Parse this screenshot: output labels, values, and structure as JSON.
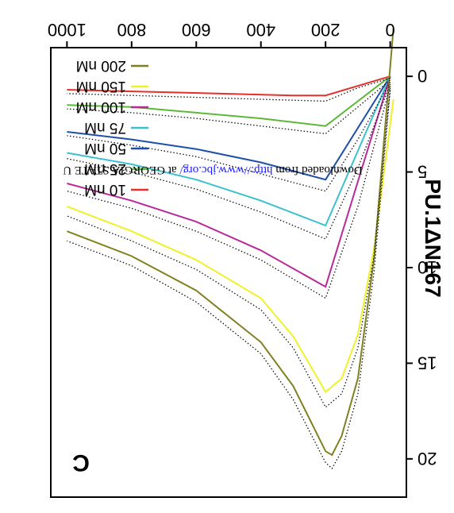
{
  "chart_data": {
    "type": "line",
    "panel_label": "C",
    "title": "PU.1ΔN167",
    "xlabel": "",
    "ylabel": "",
    "xlim": [
      -50,
      1050
    ],
    "ylim": [
      -1.5,
      22
    ],
    "x_ticks": [
      0,
      200,
      400,
      600,
      800,
      1000
    ],
    "y_ticks": [
      0,
      5,
      10,
      15,
      20
    ],
    "grid": false,
    "legend_position": "lower-right",
    "orientation": "rotated-180",
    "series": [
      {
        "name": "10 nM",
        "color": "#e8302a",
        "fit": [
          [
            0,
            0
          ],
          [
            200,
            1.0
          ],
          [
            300,
            1.0
          ],
          [
            1000,
            0.7
          ]
        ],
        "observed": [
          [
            0,
            0.1
          ],
          [
            100,
            0.6
          ],
          [
            200,
            1.3
          ],
          [
            400,
            1.2
          ],
          [
            600,
            1.1
          ],
          [
            800,
            1.0
          ],
          [
            1000,
            0.9
          ]
        ]
      },
      {
        "name": "25 nM",
        "color": "#5cb83a",
        "fit": [
          [
            0,
            0
          ],
          [
            200,
            2.6
          ],
          [
            400,
            2.2
          ],
          [
            600,
            1.9
          ],
          [
            800,
            1.6
          ],
          [
            1000,
            1.5
          ]
        ],
        "observed": [
          [
            0,
            0.2
          ],
          [
            100,
            1.6
          ],
          [
            200,
            3.0
          ],
          [
            400,
            2.6
          ],
          [
            600,
            2.2
          ],
          [
            800,
            1.9
          ],
          [
            1000,
            1.7
          ]
        ]
      },
      {
        "name": "50 nM",
        "color": "#1f4fa8",
        "fit": [
          [
            0,
            0
          ],
          [
            200,
            5.4
          ],
          [
            400,
            4.5
          ],
          [
            600,
            3.8
          ],
          [
            800,
            3.3
          ],
          [
            1000,
            2.9
          ]
        ],
        "observed": [
          [
            0,
            0.3
          ],
          [
            100,
            3.3
          ],
          [
            200,
            6.0
          ],
          [
            400,
            5.1
          ],
          [
            600,
            4.2
          ],
          [
            800,
            3.6
          ],
          [
            1000,
            3.1
          ]
        ]
      },
      {
        "name": "75 nM",
        "color": "#3cc0d0",
        "fit": [
          [
            0,
            0
          ],
          [
            200,
            7.8
          ],
          [
            400,
            6.5
          ],
          [
            600,
            5.4
          ],
          [
            800,
            4.6
          ],
          [
            1000,
            4.0
          ]
        ],
        "observed": [
          [
            0,
            0.4
          ],
          [
            100,
            4.8
          ],
          [
            200,
            8.5
          ],
          [
            400,
            7.1
          ],
          [
            600,
            5.9
          ],
          [
            800,
            5.0
          ],
          [
            1000,
            4.3
          ]
        ]
      },
      {
        "name": "100 nM",
        "color": "#b82a9c",
        "fit": [
          [
            0,
            0
          ],
          [
            200,
            11.0
          ],
          [
            400,
            9.1
          ],
          [
            600,
            7.6
          ],
          [
            800,
            6.5
          ],
          [
            1000,
            5.6
          ]
        ],
        "observed": [
          [
            0,
            0.5
          ],
          [
            100,
            6.8
          ],
          [
            200,
            11.6
          ],
          [
            400,
            9.6
          ],
          [
            600,
            8.1
          ],
          [
            800,
            6.9
          ],
          [
            1000,
            6.0
          ]
        ]
      },
      {
        "name": "150 nM",
        "color": "#f0f028",
        "fit": [
          [
            -10,
            1.2
          ],
          [
            50,
            9.0
          ],
          [
            100,
            13.5
          ],
          [
            150,
            15.8
          ],
          [
            200,
            16.5
          ],
          [
            300,
            13.6
          ],
          [
            400,
            11.6
          ],
          [
            600,
            9.6
          ],
          [
            800,
            8.1
          ],
          [
            1000,
            6.8
          ]
        ],
        "observed": [
          [
            0,
            0.6
          ],
          [
            50,
            9.4
          ],
          [
            100,
            14.2
          ],
          [
            150,
            16.6
          ],
          [
            200,
            17.3
          ],
          [
            300,
            14.2
          ],
          [
            400,
            12.2
          ],
          [
            600,
            10.1
          ],
          [
            800,
            8.6
          ],
          [
            1000,
            7.3
          ]
        ]
      },
      {
        "name": "200 nM",
        "color": "#808020",
        "fit": [
          [
            -10,
            -2.5
          ],
          [
            50,
            9.5
          ],
          [
            100,
            15.8
          ],
          [
            150,
            18.8
          ],
          [
            180,
            19.8
          ],
          [
            200,
            19.6
          ],
          [
            300,
            16.2
          ],
          [
            400,
            13.9
          ],
          [
            600,
            11.2
          ],
          [
            800,
            9.4
          ],
          [
            1000,
            8.1
          ]
        ],
        "observed": [
          [
            0,
            0.7
          ],
          [
            50,
            10.2
          ],
          [
            100,
            16.6
          ],
          [
            150,
            19.6
          ],
          [
            180,
            20.5
          ],
          [
            200,
            20.2
          ],
          [
            300,
            16.9
          ],
          [
            400,
            14.5
          ],
          [
            600,
            11.8
          ],
          [
            800,
            9.9
          ],
          [
            1000,
            8.6
          ]
        ]
      }
    ]
  },
  "watermark": {
    "prefix": "Downloaded from ",
    "link": "http://www.jbc.org/",
    "suffix": " at GEORGIA STATE U"
  }
}
